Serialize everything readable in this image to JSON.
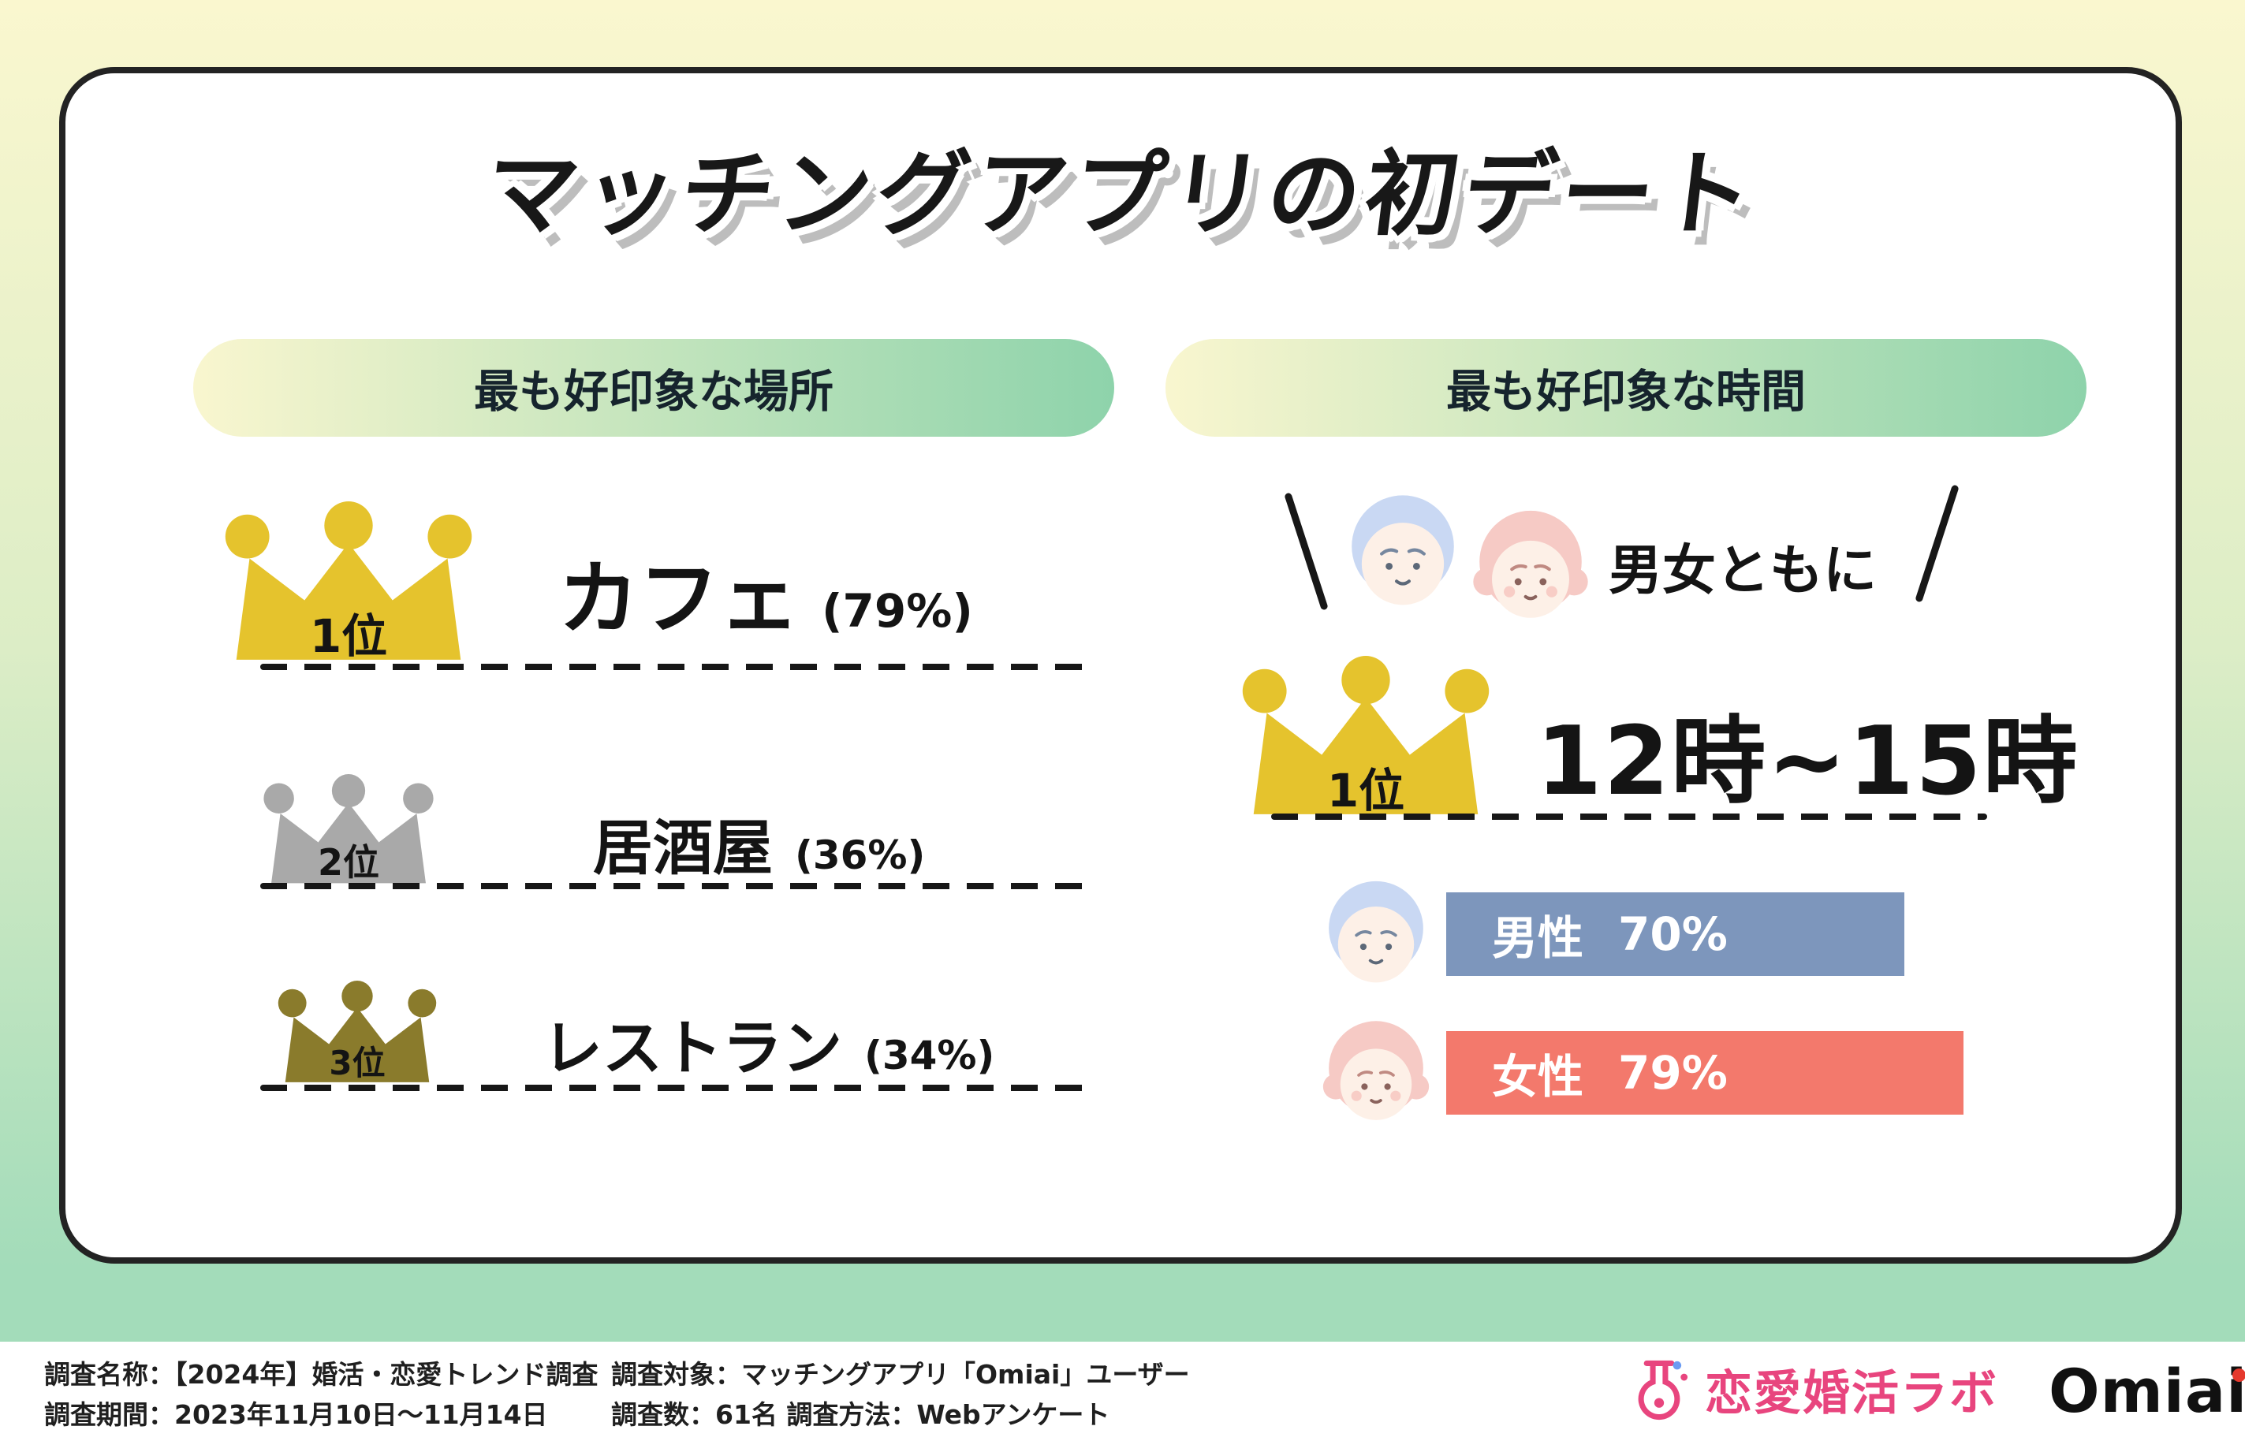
{
  "page": {
    "title": "マッチングアプリの初デート"
  },
  "colors": {
    "bg-top": "#faf7cf",
    "bg-mid": "#dcedc6",
    "bg-bottom": "#a3dcba",
    "pill-from": "#f9f6cf",
    "pill-to": "#8ed3ab",
    "gold": "#e5c32d",
    "silver": "#a9a9a9",
    "bronze": "#8a7b2c",
    "male-bar": "#7d96bc",
    "female-bar": "#f3796c",
    "male-hair": "#c9d8f3",
    "female-hair": "#f6cac5",
    "skin": "#fdf0e7",
    "accent-pink": "#e8457e",
    "ink": "#1b1b1b"
  },
  "place_section": {
    "header": "最も好印象な場所",
    "ranks": [
      {
        "rank": "1位",
        "label": "カフェ",
        "value": "(79%)"
      },
      {
        "rank": "2位",
        "label": "居酒屋",
        "value": "(36%)"
      },
      {
        "rank": "3位",
        "label": "レストラン",
        "value": "(34%)"
      }
    ]
  },
  "time_section": {
    "header": "最も好印象な時間",
    "both_label": "男女ともに",
    "rank": "1位",
    "winner": "12時~15時",
    "bars": [
      {
        "label": "男性",
        "value": "70%",
        "pct": 70
      },
      {
        "label": "女性",
        "value": "79%",
        "pct": 79
      }
    ]
  },
  "footer": {
    "survey_name": "調査名称：【2024年】婚活・恋愛トレンド調査",
    "survey_period": "調査期間：2023年11月10日〜11月14日",
    "survey_target": "調査対象：マッチングアプリ「Omiai」ユーザー",
    "survey_count": "調査数：61名 調査方法：Webアンケート",
    "lab_logo": "恋愛婚活ラボ",
    "brand_logo": "Omiai"
  },
  "chart_data": [
    {
      "type": "bar",
      "title": "最も好印象な場所",
      "categories": [
        "カフェ",
        "居酒屋",
        "レストラン"
      ],
      "values": [
        79,
        36,
        34
      ],
      "unit": "%",
      "annotations": [
        "1位",
        "2位",
        "3位"
      ]
    },
    {
      "type": "bar",
      "title": "最も好印象な時間",
      "categories": [
        "男性",
        "女性"
      ],
      "values": [
        70,
        79
      ],
      "unit": "%",
      "annotations": [
        "男女ともに",
        "1位 12時~15時"
      ]
    }
  ]
}
